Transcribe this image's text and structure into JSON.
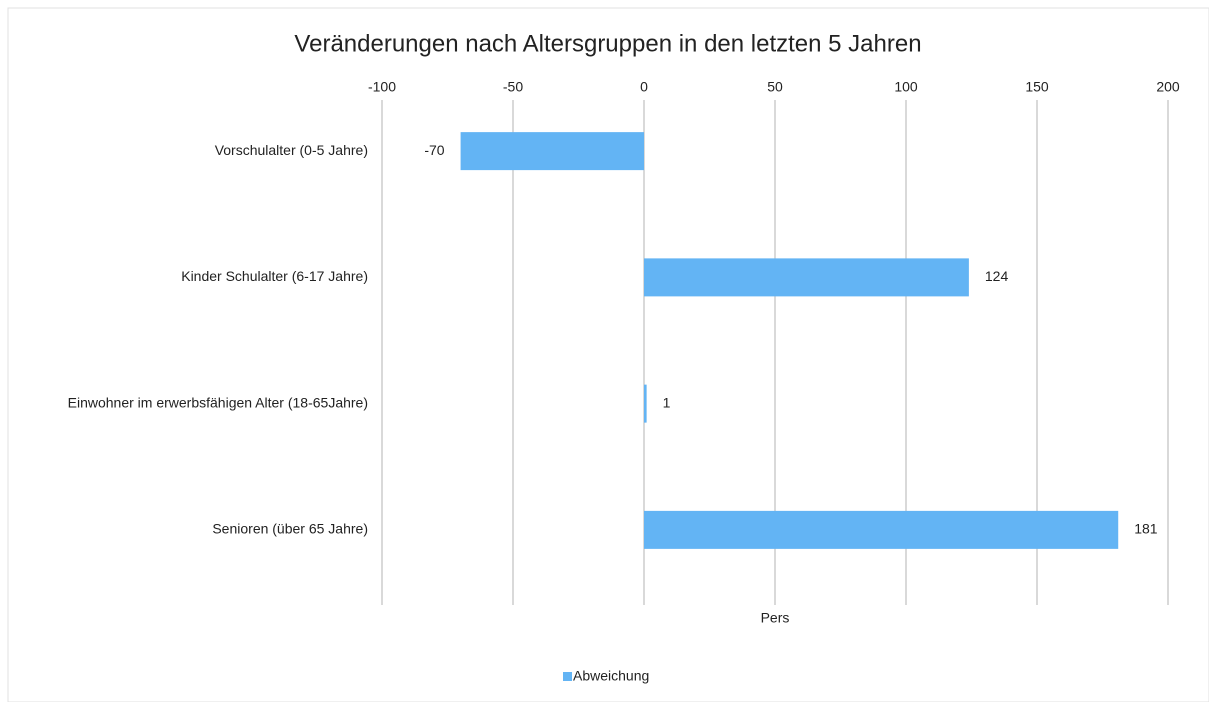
{
  "chart_data": {
    "type": "bar",
    "orientation": "horizontal",
    "title": "Veränderungen nach Altersgruppen in den letzten 5 Jahren",
    "x_label": "Pers",
    "categories": [
      "Vorschulalter (0-5 Jahre)",
      "Kinder Schulalter (6-17 Jahre)",
      "Einwohner im erwerbsfähigen Alter (18-65Jahre)",
      "Senioren (über 65 Jahre)"
    ],
    "series": [
      {
        "name": "Abweichung",
        "color": "#63b4f4",
        "values": [
          -70,
          124,
          1,
          181
        ]
      }
    ],
    "xlim": [
      -100,
      200
    ],
    "xticks": [
      -100,
      -50,
      0,
      50,
      100,
      150,
      200
    ],
    "grid": true,
    "legend": "bottom"
  }
}
